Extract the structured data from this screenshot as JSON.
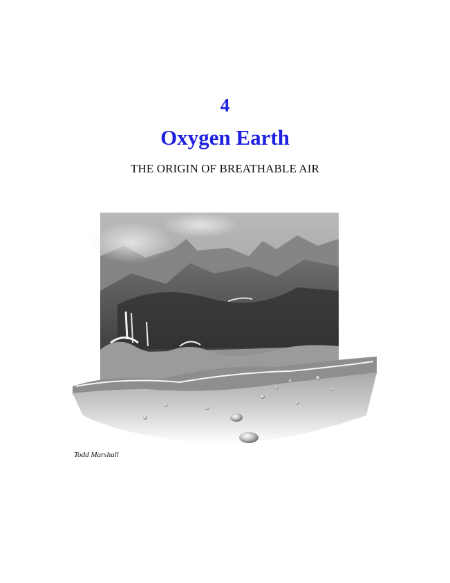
{
  "chapter": {
    "number": "4",
    "title": "Oxygen Earth",
    "subtitle": "THE ORIGIN OF BREATHABLE AIR"
  },
  "illustration": {
    "description_icon": "volcanic-shore-illustration",
    "credit": "Todd Marshall"
  },
  "colors": {
    "heading": "#1f20e0",
    "body_text": "#111111"
  }
}
